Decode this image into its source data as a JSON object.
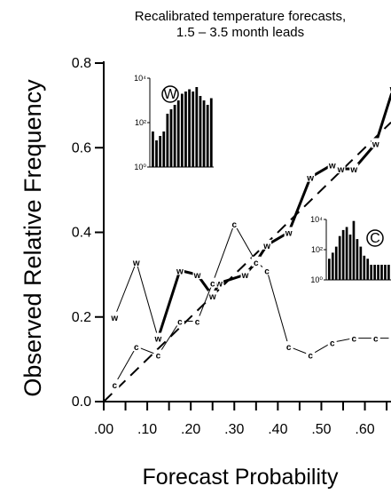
{
  "chart_data": {
    "type": "line",
    "title": "Recalibrated temperature forecasts,",
    "subtitle": "1.5 – 3.5 month leads",
    "xlabel": "Forecast Probability",
    "ylabel": "Observed Relative Frequency",
    "xlim": [
      0.0,
      0.66
    ],
    "ylim": [
      0.0,
      0.8
    ],
    "x_ticks": [
      0.0,
      0.05,
      0.1,
      0.15,
      0.2,
      0.25,
      0.3,
      0.35,
      0.4,
      0.45,
      0.5,
      0.55,
      0.6,
      0.65
    ],
    "x_tick_labels": [
      ".00",
      ".10",
      ".20",
      ".30",
      ".40",
      ".50",
      ".60"
    ],
    "x_tick_label_values": [
      0.0,
      0.1,
      0.2,
      0.3,
      0.4,
      0.5,
      0.6
    ],
    "y_ticks": [
      0.0,
      0.2,
      0.4,
      0.6,
      0.8
    ],
    "y_tick_labels": [
      "0.0",
      "0.2",
      "0.4",
      "0.6",
      "0.8"
    ],
    "diagonal": [
      [
        0.0,
        0.0
      ],
      [
        0.66,
        0.66
      ]
    ],
    "series": [
      {
        "marker": "w",
        "x": [
          0.025,
          0.075,
          0.125,
          0.175,
          0.215,
          0.25,
          0.265,
          0.325,
          0.35,
          0.375,
          0.425,
          0.475,
          0.525,
          0.545,
          0.575,
          0.625,
          0.665
        ],
        "y": [
          0.2,
          0.33,
          0.15,
          0.31,
          0.3,
          0.25,
          0.28,
          0.3,
          0.33,
          0.37,
          0.4,
          0.53,
          0.56,
          0.55,
          0.55,
          0.61,
          0.74
        ],
        "thick_from_index": 2
      },
      {
        "marker": "c",
        "x": [
          0.025,
          0.075,
          0.125,
          0.175,
          0.215,
          0.25,
          0.3,
          0.35,
          0.375,
          0.425,
          0.475,
          0.525,
          0.575,
          0.625,
          0.665
        ],
        "y": [
          0.04,
          0.13,
          0.11,
          0.19,
          0.19,
          0.28,
          0.42,
          0.33,
          0.31,
          0.13,
          0.11,
          0.14,
          0.15,
          0.15,
          0.15
        ]
      }
    ],
    "insets": [
      {
        "label": "W",
        "y_tick_labels": [
          "10⁴",
          "10²",
          "10⁰"
        ],
        "bars": [
          1.6,
          1.2,
          1.4,
          1.6,
          2.4,
          2.6,
          2.8,
          3.0,
          3.3,
          3.4,
          3.5,
          3.4,
          3.6,
          3.2,
          3.0,
          2.8,
          3.1
        ]
      },
      {
        "label": "C",
        "y_tick_labels": [
          "10⁴",
          "10²",
          "10⁰"
        ],
        "bars": [
          1.4,
          1.8,
          2.2,
          2.9,
          3.3,
          3.5,
          3.0,
          3.9,
          2.7,
          2.2,
          1.6,
          1.4,
          1.0,
          1.0,
          1.0,
          1.0,
          1.0,
          1.0
        ]
      }
    ]
  }
}
